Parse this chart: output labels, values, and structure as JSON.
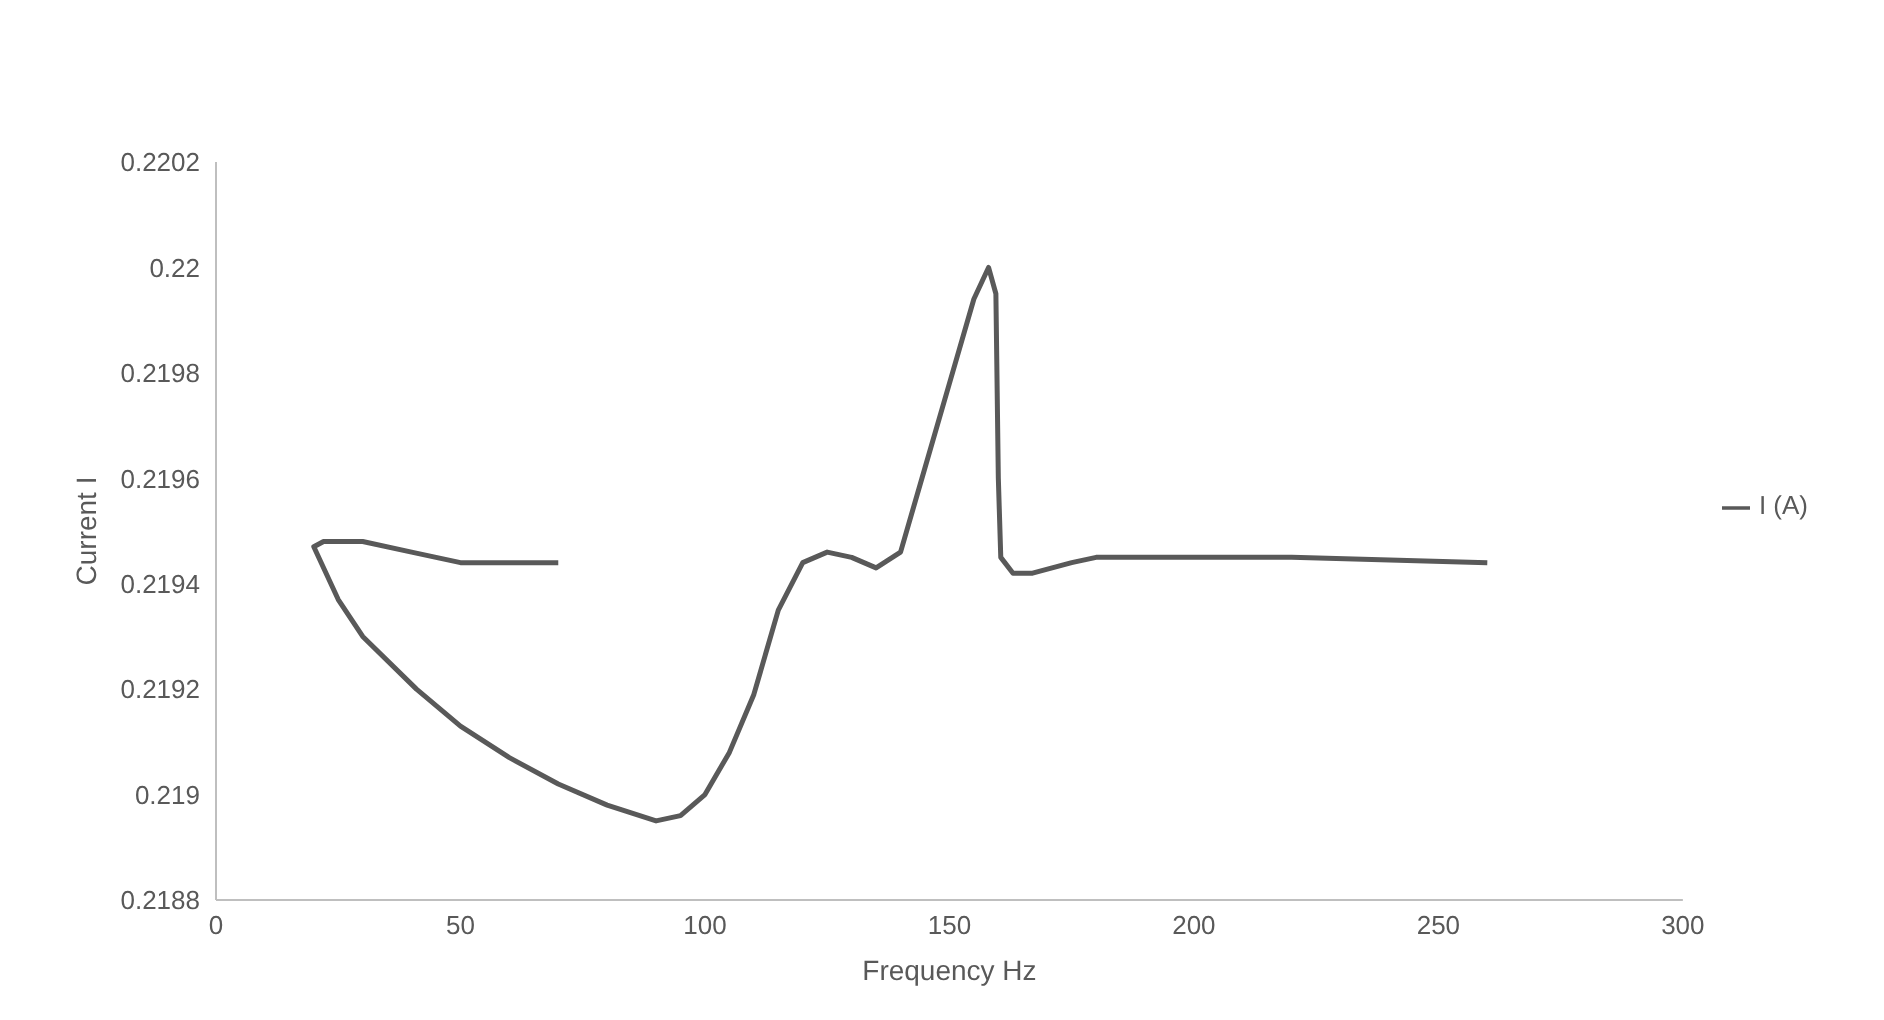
{
  "chart_data": {
    "type": "line",
    "xlabel": "Frequency Hz",
    "ylabel": "Current I",
    "legend": "right",
    "marker": "none",
    "line_style": "solid",
    "grid": false,
    "xlim": [
      0,
      300
    ],
    "xticks": [
      0,
      50,
      100,
      150,
      200,
      250,
      300
    ],
    "ylim": [
      0.2188,
      0.2202
    ],
    "yticks": [
      0.2188,
      0.219,
      0.2192,
      0.2194,
      0.2196,
      0.2198,
      0.22,
      0.2202
    ],
    "series": [
      {
        "name": "I (A)",
        "color": "#595959",
        "x": [
          70,
          60,
          50,
          40,
          30,
          22,
          20,
          25,
          30,
          41,
          50,
          60,
          70,
          80,
          90,
          95,
          100,
          105,
          110,
          115,
          120,
          125,
          130,
          135,
          140,
          145,
          150,
          155,
          158,
          159.5,
          160,
          160.5,
          163,
          167,
          175,
          180,
          220,
          260
        ],
        "values": [
          0.21944,
          0.21944,
          0.21944,
          0.21946,
          0.21948,
          0.21948,
          0.21947,
          0.21937,
          0.2193,
          0.2192,
          0.21913,
          0.21907,
          0.21902,
          0.21898,
          0.21895,
          0.21896,
          0.219,
          0.21908,
          0.21919,
          0.21935,
          0.21944,
          0.21946,
          0.21945,
          0.21943,
          0.21946,
          0.21962,
          0.21978,
          0.21994,
          0.22,
          0.21995,
          0.2196,
          0.21945,
          0.21942,
          0.21942,
          0.21944,
          0.21945,
          0.21945,
          0.21944
        ]
      }
    ]
  }
}
